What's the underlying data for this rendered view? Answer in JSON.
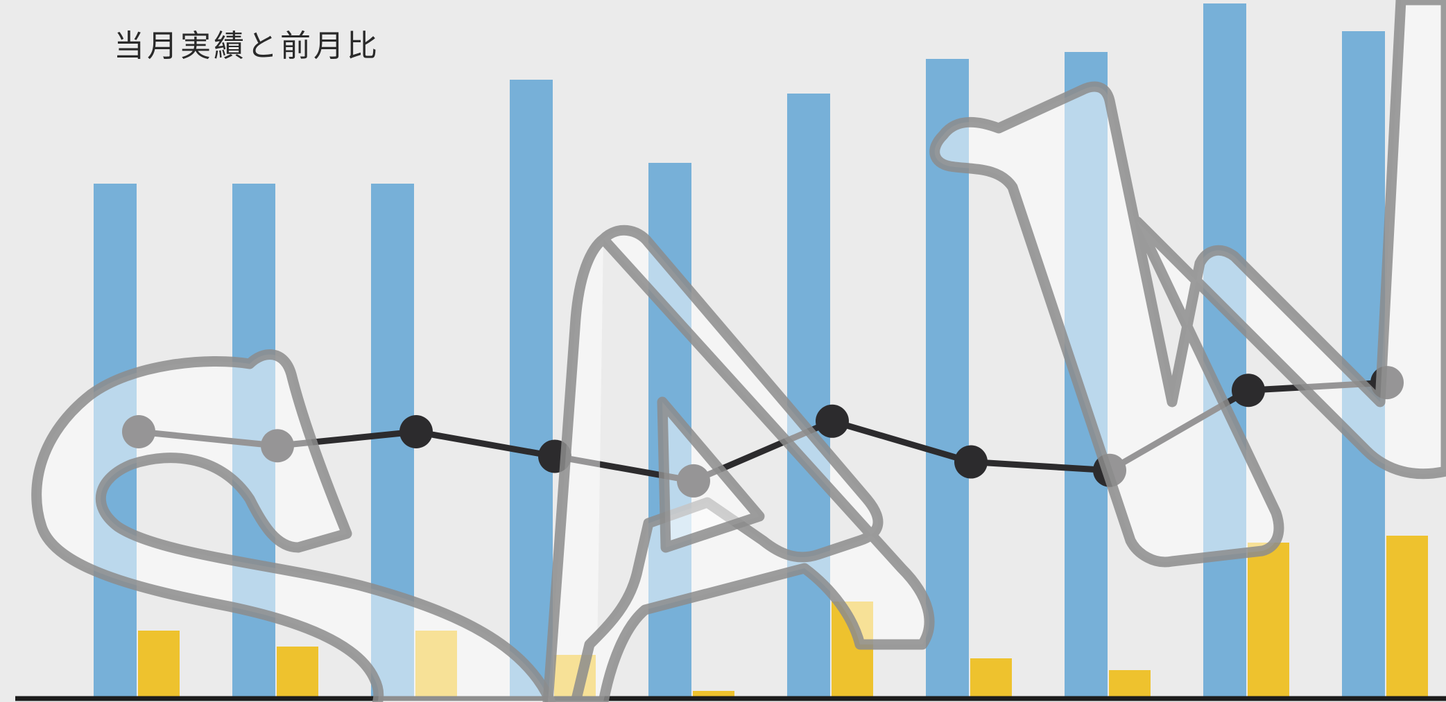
{
  "chart_data": {
    "type": "bar",
    "title": "当月実績と前月比",
    "xlabel": "",
    "ylabel": "",
    "categories": [
      "",
      "",
      "",
      "",
      "",
      "",
      "",
      "",
      "",
      ""
    ],
    "grid": false,
    "legend": "none",
    "bar_axis": {
      "ylim": [
        0,
        100
      ]
    },
    "line_axis": {
      "ylim": [
        0,
        100
      ]
    },
    "series": [
      {
        "kind": "bar",
        "color": "#77b0d8",
        "values": [
          74,
          74,
          74,
          89,
          77,
          87,
          92,
          93,
          100,
          96
        ]
      },
      {
        "kind": "bar",
        "color": "#eec22e",
        "values": [
          9.5,
          7.2,
          9.5,
          6.0,
          0.8,
          13.7,
          5.5,
          3.8,
          22.2,
          23.2
        ]
      },
      {
        "kind": "line",
        "color": "#2c2b2d",
        "values": [
          38.5,
          36.5,
          38.5,
          35.0,
          31.5,
          40.0,
          34.2,
          33.0,
          44.4,
          45.5
        ]
      }
    ],
    "watermark": "SAMPLE"
  }
}
